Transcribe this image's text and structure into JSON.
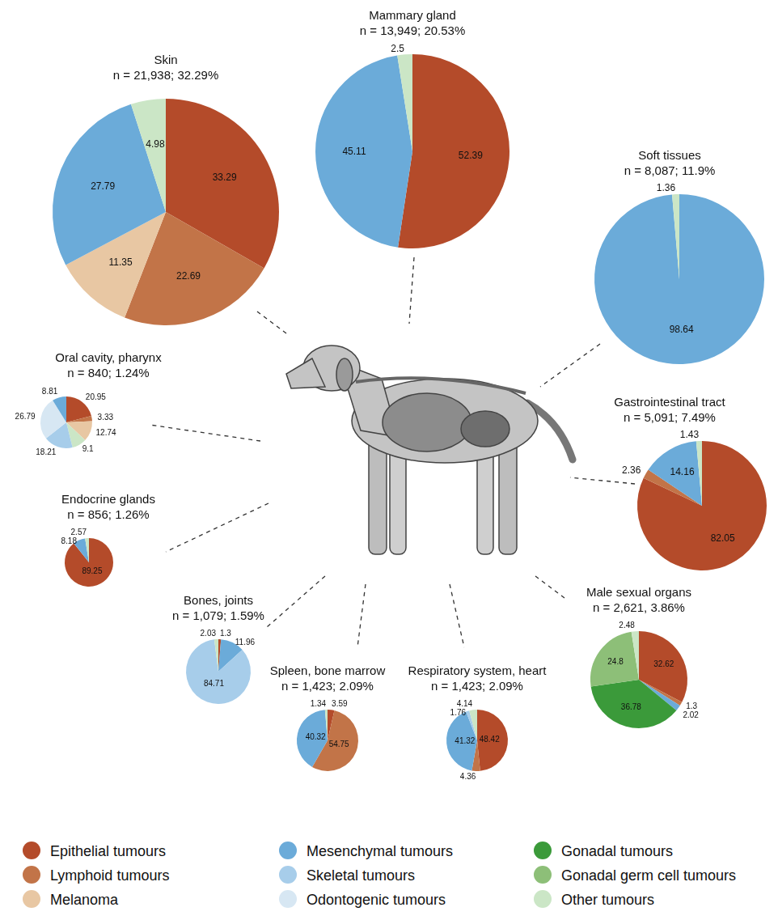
{
  "chart_data": [
    {
      "type": "pie",
      "title": "Skin",
      "subtitle": "n = 21,938; 32.29%",
      "categories": [
        "Epithelial tumours",
        "Lymphoid tumours",
        "Melanoma",
        "Mesenchymal tumours",
        "Other tumours"
      ],
      "values": [
        33.29,
        22.69,
        11.35,
        27.79,
        4.98
      ],
      "colors": [
        "#b44b2a",
        "#c27448",
        "#e8c7a3",
        "#6babd9",
        "#cbe6c6"
      ],
      "data_labels": true
    },
    {
      "type": "pie",
      "title": "Mammary gland",
      "subtitle": "n = 13,949; 20.53%",
      "categories": [
        "Epithelial tumours",
        "Mesenchymal tumours",
        "Other tumours"
      ],
      "values": [
        52.39,
        45.11,
        2.5
      ],
      "colors": [
        "#b44b2a",
        "#6babd9",
        "#cbe6c6"
      ],
      "data_labels": true
    },
    {
      "type": "pie",
      "title": "Soft tissues",
      "subtitle": "n = 8,087; 11.9%",
      "categories": [
        "Mesenchymal tumours",
        "Other tumours"
      ],
      "values": [
        98.64,
        1.36
      ],
      "colors": [
        "#6babd9",
        "#cbe6c6"
      ],
      "data_labels": true
    },
    {
      "type": "pie",
      "title": "Gastrointestinal tract",
      "subtitle": "n = 5,091; 7.49%",
      "categories": [
        "Epithelial tumours",
        "Lymphoid tumours",
        "Mesenchymal tumours",
        "Other tumours"
      ],
      "values": [
        82.05,
        2.36,
        14.16,
        1.43
      ],
      "colors": [
        "#b44b2a",
        "#c27448",
        "#6babd9",
        "#cbe6c6"
      ],
      "data_labels": true
    },
    {
      "type": "pie",
      "title": "Male sexual organs",
      "subtitle": "n = 2,621, 3.86%",
      "categories": [
        "Epithelial tumours",
        "Lymphoid tumours",
        "Mesenchymal tumours",
        "Gonadal tumours",
        "Gonadal germ cell tumours",
        "Other tumours"
      ],
      "values": [
        32.62,
        1.3,
        2.02,
        36.78,
        24.8,
        2.48
      ],
      "colors": [
        "#b44b2a",
        "#c27448",
        "#6babd9",
        "#3b9a3a",
        "#8dbf78",
        "#cbe6c6"
      ],
      "data_labels": true
    },
    {
      "type": "pie",
      "title": "Respiratory system, heart",
      "subtitle": "n = 1,423; 2.09%",
      "categories": [
        "Epithelial tumours",
        "Lymphoid tumours",
        "Mesenchymal tumours",
        "Skeletal tumours",
        "Other tumours"
      ],
      "values": [
        48.42,
        4.36,
        41.32,
        1.76,
        4.14
      ],
      "colors": [
        "#b44b2a",
        "#c27448",
        "#6babd9",
        "#a7cdea",
        "#cbe6c6"
      ],
      "data_labels": true
    },
    {
      "type": "pie",
      "title": "Spleen, bone marrow",
      "subtitle": "n = 1,423; 2.09%",
      "categories": [
        "Epithelial tumours",
        "Lymphoid tumours",
        "Mesenchymal tumours",
        "Other tumours"
      ],
      "values": [
        3.59,
        54.75,
        40.32,
        1.34
      ],
      "colors": [
        "#b44b2a",
        "#c27448",
        "#6babd9",
        "#cbe6c6"
      ],
      "data_labels": true
    },
    {
      "type": "pie",
      "title": "Bones, joints",
      "subtitle": "n = 1,079; 1.59%",
      "categories": [
        "Epithelial tumours",
        "Mesenchymal tumours",
        "Skeletal tumours",
        "Other tumours"
      ],
      "values": [
        1.3,
        11.96,
        84.71,
        2.03
      ],
      "colors": [
        "#b44b2a",
        "#6babd9",
        "#a7cdea",
        "#cbe6c6"
      ],
      "data_labels": true
    },
    {
      "type": "pie",
      "title": "Endocrine glands",
      "subtitle": "n = 856; 1.26%",
      "categories": [
        "Epithelial tumours",
        "Mesenchymal tumours",
        "Other tumours"
      ],
      "values": [
        89.25,
        8.18,
        2.57
      ],
      "colors": [
        "#b44b2a",
        "#6babd9",
        "#cbe6c6"
      ],
      "data_labels": true
    },
    {
      "type": "pie",
      "title": "Oral cavity, pharynx",
      "subtitle": "n = 840; 1.24%",
      "categories": [
        "Epithelial tumours",
        "Lymphoid tumours",
        "Melanoma",
        "Other tumours",
        "Skeletal tumours",
        "Odontogenic tumours",
        "Mesenchymal tumours"
      ],
      "values": [
        20.95,
        3.33,
        12.74,
        9.1,
        18.21,
        26.79,
        8.81
      ],
      "colors": [
        "#b44b2a",
        "#c27448",
        "#e8c7a3",
        "#cbe6c6",
        "#a7cdea",
        "#d7e7f3",
        "#6babd9"
      ],
      "data_labels": true
    }
  ],
  "legend": "bottom",
  "legend_entries": [
    {
      "name": "Epithelial tumours",
      "color": "#b44b2a"
    },
    {
      "name": "Lymphoid tumours",
      "color": "#c27448"
    },
    {
      "name": "Melanoma",
      "color": "#e8c7a3"
    },
    {
      "name": "Mesenchymal tumours",
      "color": "#6babd9"
    },
    {
      "name": "Skeletal tumours",
      "color": "#a7cdea"
    },
    {
      "name": "Odontogenic tumours",
      "color": "#d7e7f3"
    },
    {
      "name": "Gonadal tumours",
      "color": "#3b9a3a"
    },
    {
      "name": "Gonadal germ cell tumours",
      "color": "#8dbf78"
    },
    {
      "name": "Other tumours",
      "color": "#cbe6c6"
    }
  ]
}
